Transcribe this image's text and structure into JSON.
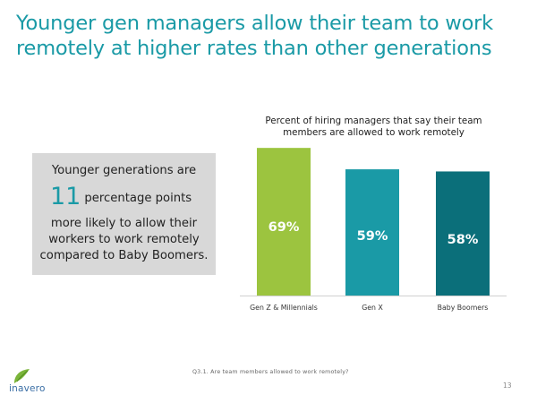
{
  "slide": {
    "title": "Younger gen managers allow their team to work remotely at higher rates than other generations",
    "footnote": "Q3.1. Are team members allowed to work remotely?",
    "page_number": "13",
    "logo_text": "inavero"
  },
  "callout": {
    "line1": "Younger generations are",
    "big_number": "11",
    "line2_rest": "percentage points",
    "line3": "more likely to allow their",
    "line4": "workers to work remotely",
    "line5": "compared to Baby Boomers."
  },
  "chart_data": {
    "type": "bar",
    "title": "Percent of hiring managers that say their team members are allowed to work remotely",
    "categories": [
      "Gen Z & Millennials",
      "Gen X",
      "Baby Boomers"
    ],
    "values": [
      69,
      59,
      58
    ],
    "value_labels": [
      "69%",
      "59%",
      "58%"
    ],
    "colors": [
      "#9cc43f",
      "#1a9aa6",
      "#0b6f7a"
    ],
    "ylim": [
      0,
      72
    ],
    "grid": false,
    "legend": "none"
  }
}
